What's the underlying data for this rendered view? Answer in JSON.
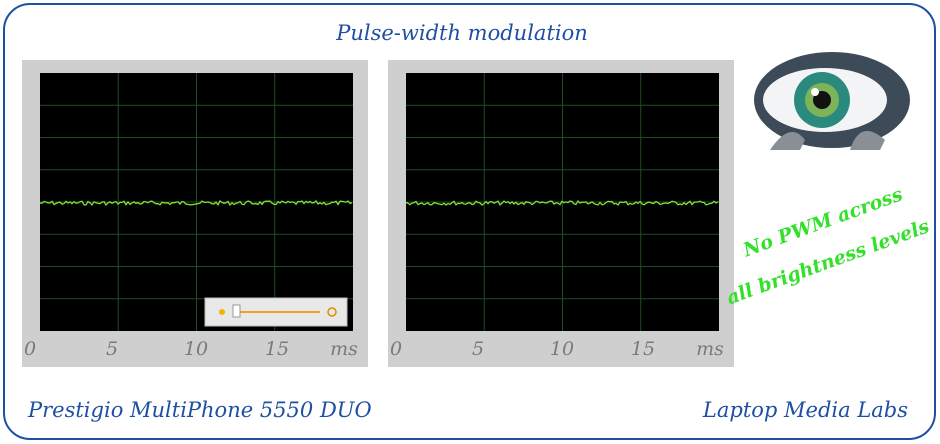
{
  "title": "Pulse-width modulation",
  "panels": [
    {
      "x_ticks": [
        "0",
        "5",
        "10",
        "15"
      ],
      "x_unit": "ms"
    },
    {
      "x_ticks": [
        "0",
        "5",
        "10",
        "15"
      ],
      "x_unit": "ms"
    }
  ],
  "note": [
    "No PWM across",
    "all brightness levels"
  ],
  "device": "Prestigio MultiPhone 5550 DUO",
  "source": "Laptop Media Labs"
}
